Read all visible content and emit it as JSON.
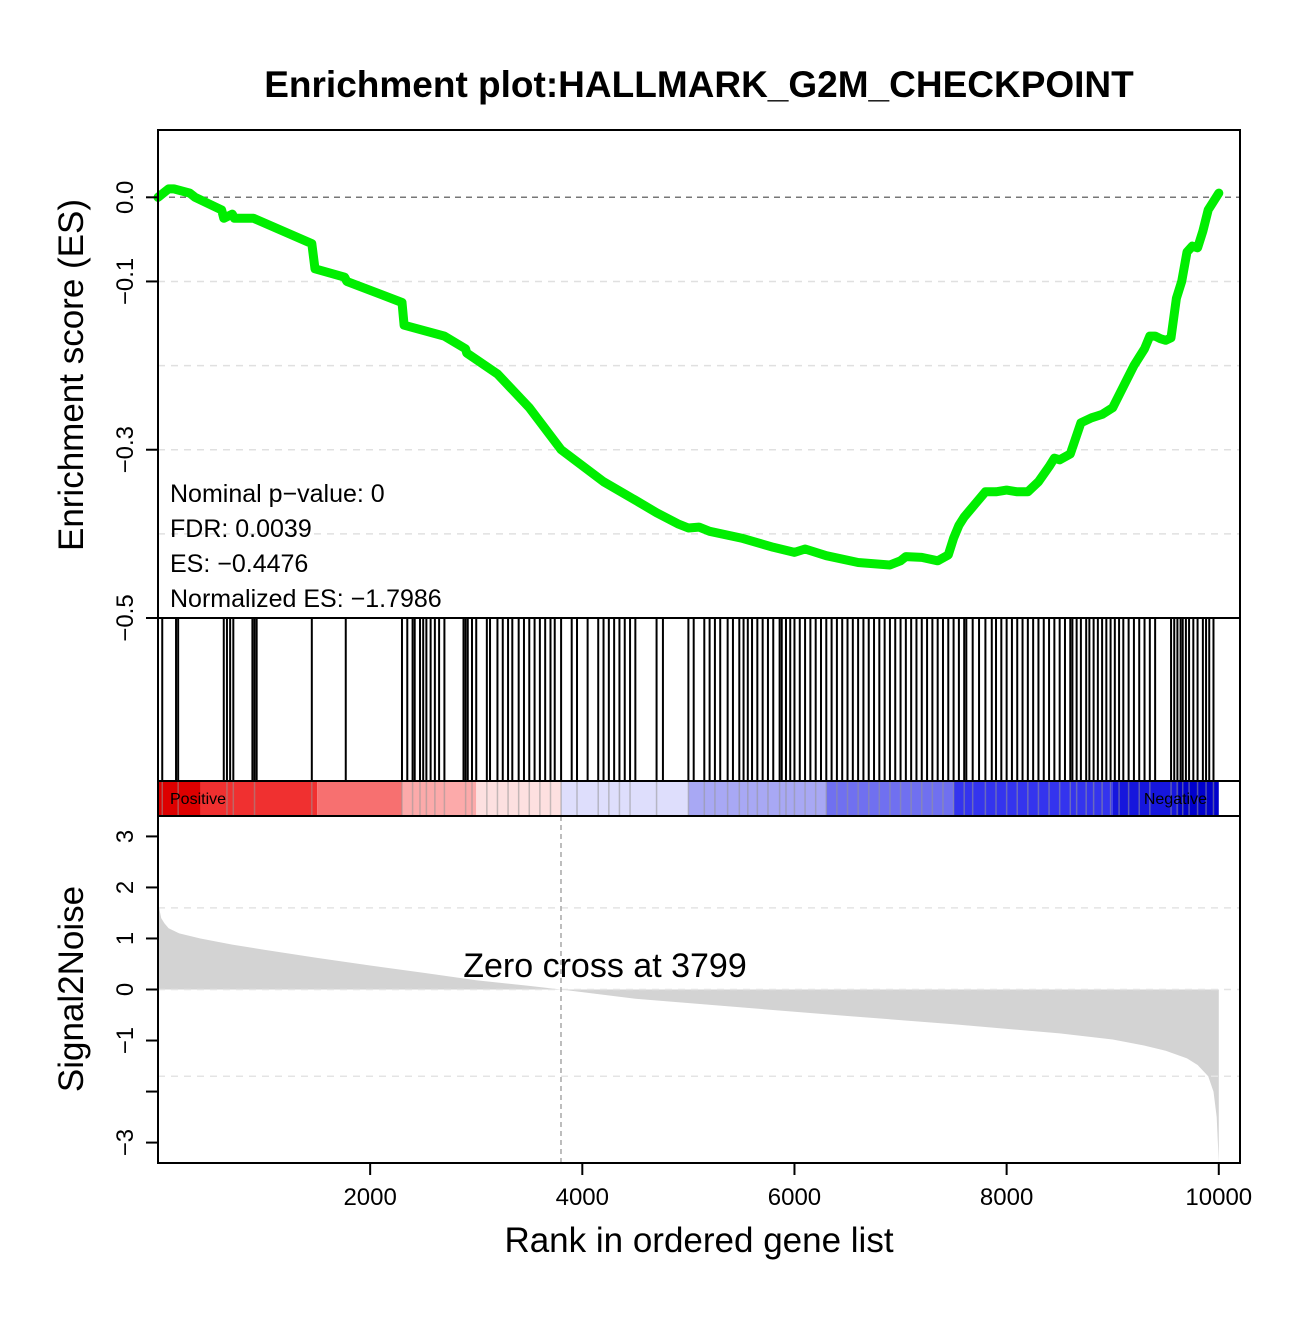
{
  "chart_data": {
    "type": "line",
    "title": "Enrichment plot:HALLMARK_G2M_CHECKPOINT",
    "xlabel": "Rank in ordered gene list",
    "xlim": [
      0,
      10200
    ],
    "x_ticks": [
      2000,
      4000,
      6000,
      8000,
      10000
    ],
    "es_panel": {
      "ylabel": "Enrichment score (ES)",
      "ylim": [
        -0.5,
        0.08
      ],
      "y_ticks": [
        0.0,
        -0.1,
        -0.3,
        -0.5
      ],
      "y_tick_labels": [
        "0.0",
        "−0.1",
        "−0.3",
        "−0.5"
      ],
      "y_grid": [
        -0.1,
        -0.2,
        -0.3,
        -0.4
      ],
      "series": [
        {
          "color": "#00ee00",
          "x": [
            0,
            100,
            150,
            300,
            350,
            600,
            620,
            700,
            720,
            850,
            900,
            1450,
            1480,
            1760,
            1780,
            2300,
            2320,
            2700,
            2900,
            2910,
            3200,
            3500,
            3800,
            4200,
            4500,
            4700,
            4900,
            5000,
            5100,
            5200,
            5500,
            5800,
            6000,
            6100,
            6300,
            6600,
            6900,
            7000,
            7050,
            7200,
            7350,
            7450,
            7500,
            7550,
            7600,
            7700,
            7800,
            7900,
            8000,
            8100,
            8200,
            8300,
            8400,
            8450,
            8500,
            8600,
            8700,
            8800,
            8850,
            8900,
            9000,
            9100,
            9200,
            9250,
            9300,
            9350,
            9400,
            9450,
            9500,
            9550,
            9600,
            9650,
            9700,
            9750,
            9800,
            9850,
            9900,
            9950,
            10000
          ],
          "y": [
            0.0,
            0.01,
            0.01,
            0.005,
            0.0,
            -0.015,
            -0.025,
            -0.02,
            -0.025,
            -0.025,
            -0.025,
            -0.055,
            -0.085,
            -0.095,
            -0.1,
            -0.125,
            -0.152,
            -0.165,
            -0.18,
            -0.185,
            -0.21,
            -0.25,
            -0.3,
            -0.338,
            -0.36,
            -0.375,
            -0.388,
            -0.393,
            -0.392,
            -0.397,
            -0.405,
            -0.416,
            -0.422,
            -0.418,
            -0.426,
            -0.434,
            -0.437,
            -0.432,
            -0.427,
            -0.428,
            -0.432,
            -0.425,
            -0.405,
            -0.39,
            -0.38,
            -0.365,
            -0.35,
            -0.35,
            -0.348,
            -0.35,
            -0.35,
            -0.338,
            -0.32,
            -0.31,
            -0.312,
            -0.305,
            -0.268,
            -0.262,
            -0.26,
            -0.258,
            -0.25,
            -0.225,
            -0.2,
            -0.19,
            -0.18,
            -0.165,
            -0.165,
            -0.168,
            -0.17,
            -0.167,
            -0.12,
            -0.1,
            -0.065,
            -0.058,
            -0.06,
            -0.04,
            -0.015,
            -0.005,
            0.005
          ]
        }
      ],
      "annotations": [
        "Nominal p−value: 0",
        "FDR: 0.0039",
        "ES: −0.4476",
        "Normalized ES: −1.7986"
      ]
    },
    "hits_panel": {
      "gene_set_ranks": [
        40,
        170,
        190,
        620,
        650,
        680,
        710,
        890,
        910,
        930,
        1450,
        1770,
        2300,
        2350,
        2400,
        2420,
        2470,
        2500,
        2530,
        2570,
        2610,
        2650,
        2700,
        2880,
        2900,
        2920,
        2960,
        3000,
        3100,
        3130,
        3200,
        3250,
        3300,
        3340,
        3400,
        3450,
        3500,
        3550,
        3600,
        3650,
        3700,
        3740,
        3800,
        3900,
        3950,
        4050,
        4150,
        4200,
        4250,
        4300,
        4350,
        4400,
        4450,
        4500,
        4700,
        4760,
        5000,
        5050,
        5150,
        5200,
        5250,
        5300,
        5370,
        5420,
        5480,
        5520,
        5560,
        5600,
        5650,
        5700,
        5750,
        5800,
        5860,
        5880,
        5920,
        5960,
        6000,
        6050,
        6100,
        6150,
        6200,
        6250,
        6300,
        6350,
        6400,
        6450,
        6500,
        6550,
        6600,
        6650,
        6700,
        6750,
        6800,
        6850,
        6900,
        6950,
        7000,
        7050,
        7100,
        7150,
        7200,
        7250,
        7300,
        7350,
        7400,
        7450,
        7500,
        7550,
        7600,
        7620,
        7680,
        7740,
        7800,
        7860,
        7900,
        7950,
        8000,
        8050,
        8100,
        8150,
        8200,
        8250,
        8300,
        8350,
        8400,
        8450,
        8500,
        8550,
        8600,
        8620,
        8660,
        8700,
        8750,
        8780,
        8820,
        8860,
        8900,
        8940,
        8980,
        9020,
        9060,
        9100,
        9150,
        9200,
        9250,
        9300,
        9350,
        9400,
        9550,
        9580,
        9610,
        9640,
        9660,
        9690,
        9720,
        9760,
        9800,
        9850,
        9880,
        9910,
        9950
      ]
    },
    "rank_bar": {
      "positive_label": "Positive",
      "negative_label": "Negative",
      "segments": [
        {
          "from": 0,
          "to": 400,
          "color": "#dd0000"
        },
        {
          "from": 400,
          "to": 1500,
          "color": "#f03030"
        },
        {
          "from": 1500,
          "to": 2300,
          "color": "#f77070"
        },
        {
          "from": 2300,
          "to": 3000,
          "color": "#fcaaaa"
        },
        {
          "from": 3000,
          "to": 3799,
          "color": "#fde0e0"
        },
        {
          "from": 3799,
          "to": 5000,
          "color": "#dedefc"
        },
        {
          "from": 5000,
          "to": 6300,
          "color": "#a8a8f4"
        },
        {
          "from": 6300,
          "to": 7500,
          "color": "#7070f0"
        },
        {
          "from": 7500,
          "to": 9000,
          "color": "#3434ee"
        },
        {
          "from": 9000,
          "to": 9600,
          "color": "#1616dd"
        },
        {
          "from": 9600,
          "to": 10000,
          "color": "#0000cc"
        }
      ]
    },
    "metric_panel": {
      "ylabel": "Signal2Noise",
      "ylim": [
        -3.4,
        3.4
      ],
      "y_ticks": [
        3,
        2,
        1,
        0,
        -1,
        -3
      ],
      "y_tick_labels": [
        "3",
        "2",
        "1",
        "0",
        "−1",
        "−3"
      ],
      "y_minor_ticks": [
        -2
      ],
      "y_grid": [
        1.6,
        0,
        -1.7
      ],
      "zero_cross": 3799,
      "zero_cross_label": "Zero cross at 3799",
      "fill_color": "#d3d3d3",
      "x": [
        0,
        10,
        30,
        60,
        100,
        200,
        400,
        700,
        1000,
        1500,
        2000,
        2500,
        3000,
        3500,
        3799,
        4500,
        5500,
        6500,
        7500,
        8500,
        9000,
        9300,
        9500,
        9700,
        9800,
        9900,
        9950,
        9980,
        10000
      ],
      "y": [
        1.85,
        1.6,
        1.4,
        1.3,
        1.2,
        1.1,
        1.0,
        0.88,
        0.78,
        0.62,
        0.47,
        0.33,
        0.18,
        0.07,
        0.0,
        -0.18,
        -0.35,
        -0.52,
        -0.68,
        -0.86,
        -0.98,
        -1.1,
        -1.2,
        -1.35,
        -1.48,
        -1.7,
        -2.0,
        -2.5,
        -3.4
      ]
    }
  }
}
